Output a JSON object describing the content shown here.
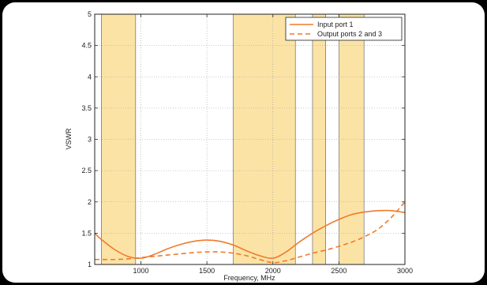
{
  "chart_data": {
    "type": "line",
    "xlabel": "Frequency, MHz",
    "ylabel": "VSWR",
    "xlim": [
      650,
      3000
    ],
    "ylim": [
      1,
      5
    ],
    "xticks": [
      1000,
      1500,
      2000,
      2500,
      3000
    ],
    "yticks": [
      1,
      1.5,
      2,
      2.5,
      3,
      3.5,
      4,
      4.5,
      5
    ],
    "grid": true,
    "legend_position": "top-right",
    "shaded_bands": [
      [
        700,
        960
      ],
      [
        1700,
        2170
      ],
      [
        2300,
        2400
      ],
      [
        2500,
        2690
      ]
    ],
    "band_color": "#fbe3a6",
    "line_color": "#f07a2c",
    "series": [
      {
        "name": "Input port 1",
        "style": "solid",
        "x": [
          650,
          700,
          800,
          900,
          1000,
          1100,
          1200,
          1300,
          1400,
          1500,
          1600,
          1700,
          1800,
          1900,
          2000,
          2100,
          2200,
          2300,
          2400,
          2500,
          2600,
          2700,
          2800,
          2900,
          3000
        ],
        "y": [
          1.5,
          1.4,
          1.24,
          1.13,
          1.1,
          1.16,
          1.25,
          1.32,
          1.37,
          1.39,
          1.37,
          1.31,
          1.22,
          1.14,
          1.1,
          1.2,
          1.36,
          1.5,
          1.62,
          1.72,
          1.8,
          1.84,
          1.86,
          1.86,
          1.83
        ]
      },
      {
        "name": "Output ports 2 and 3",
        "style": "dashed",
        "x": [
          650,
          700,
          800,
          900,
          1000,
          1100,
          1200,
          1300,
          1400,
          1500,
          1600,
          1700,
          1800,
          1900,
          2000,
          2100,
          2200,
          2300,
          2400,
          2500,
          2600,
          2700,
          2800,
          2900,
          3000
        ],
        "y": [
          1.08,
          1.08,
          1.08,
          1.09,
          1.11,
          1.13,
          1.15,
          1.17,
          1.19,
          1.2,
          1.2,
          1.18,
          1.14,
          1.08,
          1.03,
          1.06,
          1.12,
          1.18,
          1.23,
          1.29,
          1.36,
          1.45,
          1.57,
          1.76,
          2.0
        ]
      }
    ]
  }
}
